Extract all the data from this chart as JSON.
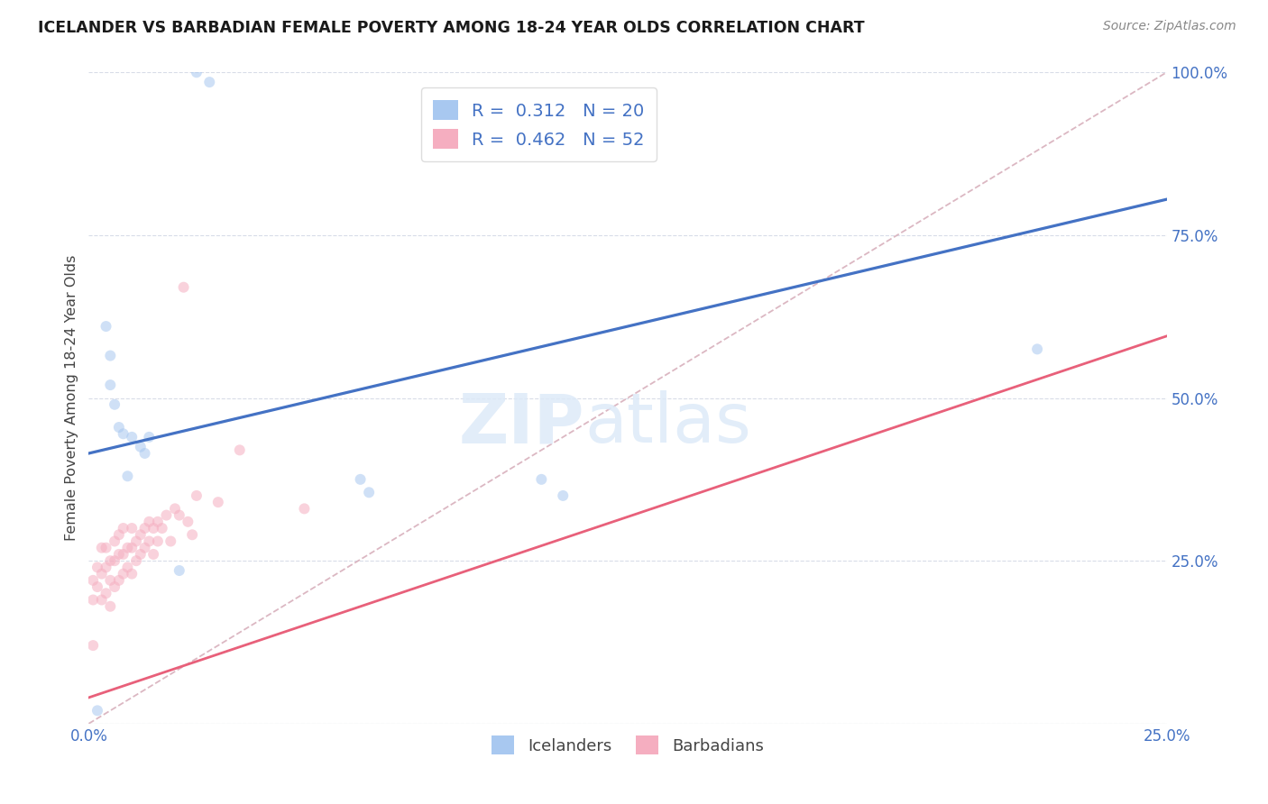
{
  "title": "ICELANDER VS BARBADIAN FEMALE POVERTY AMONG 18-24 YEAR OLDS CORRELATION CHART",
  "source": "Source: ZipAtlas.com",
  "ylabel": "Female Poverty Among 18-24 Year Olds",
  "xlim": [
    0.0,
    0.25
  ],
  "ylim": [
    0.0,
    1.0
  ],
  "xticks": [
    0.0,
    0.05,
    0.1,
    0.15,
    0.2,
    0.25
  ],
  "yticks": [
    0.0,
    0.25,
    0.5,
    0.75,
    1.0
  ],
  "icelanders_R": 0.312,
  "icelanders_N": 20,
  "barbadians_R": 0.462,
  "barbadians_N": 52,
  "icelander_color": "#a8c8f0",
  "barbadian_color": "#f5aec0",
  "icelander_line_color": "#4472c4",
  "barbadian_line_color": "#e8607a",
  "diagonal_color": "#d8b0bc",
  "background_color": "#ffffff",
  "ice_line_x0": 0.0,
  "ice_line_y0": 0.415,
  "ice_line_x1": 0.25,
  "ice_line_y1": 0.805,
  "barb_line_x0": 0.0,
  "barb_line_y0": 0.04,
  "barb_line_x1": 0.25,
  "barb_line_y1": 0.595,
  "icelanders_x": [
    0.025,
    0.028,
    0.004,
    0.005,
    0.005,
    0.006,
    0.007,
    0.008,
    0.01,
    0.012,
    0.013,
    0.014,
    0.021,
    0.063,
    0.065,
    0.105,
    0.11,
    0.22,
    0.002,
    0.009
  ],
  "icelanders_y": [
    1.0,
    0.985,
    0.61,
    0.565,
    0.52,
    0.49,
    0.455,
    0.445,
    0.44,
    0.425,
    0.415,
    0.44,
    0.235,
    0.375,
    0.355,
    0.375,
    0.35,
    0.575,
    0.02,
    0.38
  ],
  "barbadians_x": [
    0.001,
    0.001,
    0.002,
    0.002,
    0.003,
    0.003,
    0.003,
    0.004,
    0.004,
    0.004,
    0.005,
    0.005,
    0.005,
    0.006,
    0.006,
    0.006,
    0.007,
    0.007,
    0.007,
    0.008,
    0.008,
    0.008,
    0.009,
    0.009,
    0.01,
    0.01,
    0.01,
    0.011,
    0.011,
    0.012,
    0.012,
    0.013,
    0.013,
    0.014,
    0.014,
    0.015,
    0.015,
    0.016,
    0.016,
    0.017,
    0.018,
    0.019,
    0.02,
    0.021,
    0.022,
    0.023,
    0.024,
    0.025,
    0.03,
    0.035,
    0.05,
    0.001
  ],
  "barbadians_y": [
    0.19,
    0.22,
    0.21,
    0.24,
    0.19,
    0.23,
    0.27,
    0.2,
    0.24,
    0.27,
    0.18,
    0.22,
    0.25,
    0.21,
    0.25,
    0.28,
    0.22,
    0.26,
    0.29,
    0.23,
    0.26,
    0.3,
    0.24,
    0.27,
    0.23,
    0.27,
    0.3,
    0.25,
    0.28,
    0.26,
    0.29,
    0.27,
    0.3,
    0.28,
    0.31,
    0.26,
    0.3,
    0.28,
    0.31,
    0.3,
    0.32,
    0.28,
    0.33,
    0.32,
    0.67,
    0.31,
    0.29,
    0.35,
    0.34,
    0.42,
    0.33,
    0.12
  ],
  "marker_size": 75,
  "alpha": 0.55
}
